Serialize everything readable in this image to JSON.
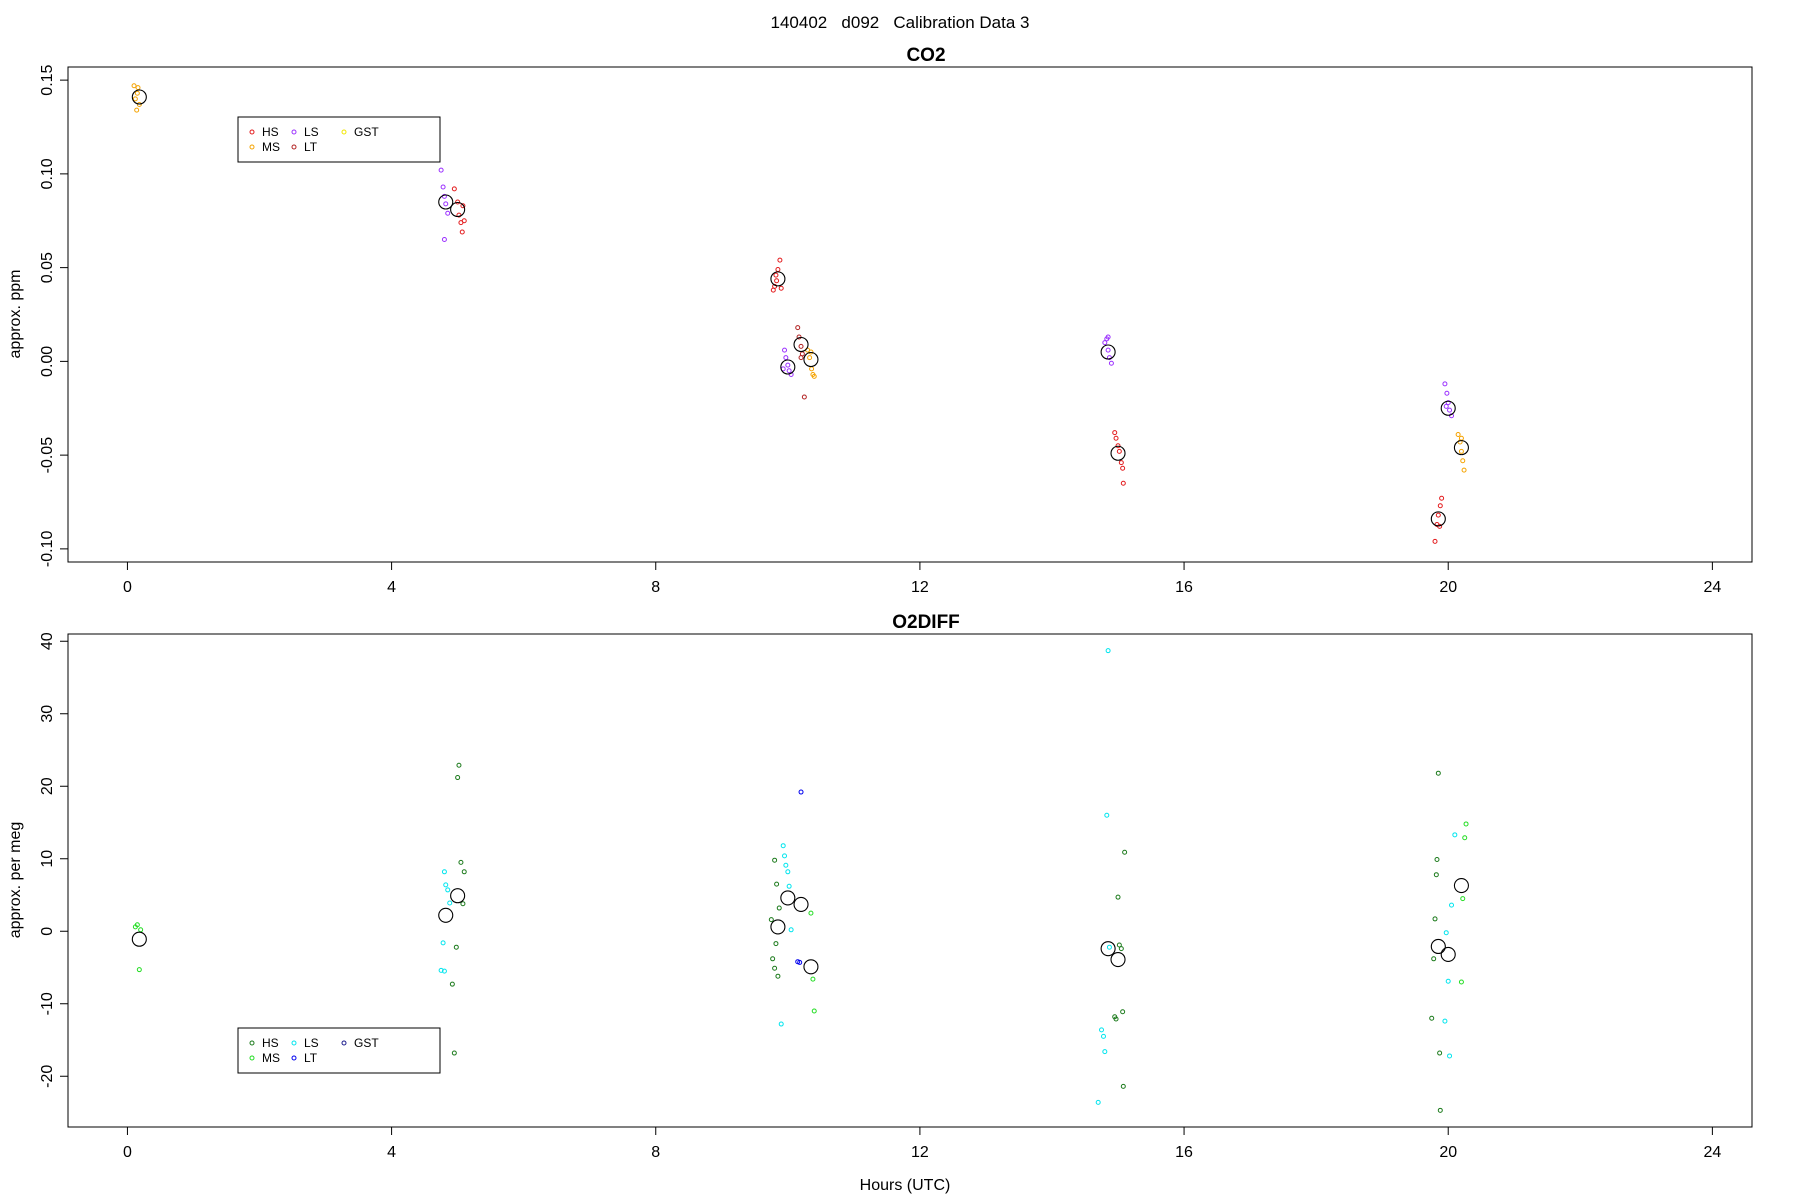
{
  "figure": {
    "title": "140402   d092   Calibration Data 3"
  },
  "panels": [
    {
      "title": "CO2",
      "ylabel": "approx. ppm",
      "xlabel": "",
      "xticks": [
        "0",
        "4",
        "8",
        "12",
        "16",
        "20",
        "24"
      ],
      "yticks": [
        "-0.10",
        "-0.05",
        "0.00",
        "0.05",
        "0.10",
        "0.15"
      ],
      "legend": [
        {
          "label": "HS",
          "color": "#e31a1c"
        },
        {
          "label": "MS",
          "color": "#f5a300"
        },
        {
          "label": "LS",
          "color": "#9b30ff"
        },
        {
          "label": "LT",
          "color": "#b22222"
        },
        {
          "label": "GST",
          "color": "#f2e600"
        }
      ]
    },
    {
      "title": "O2DIFF",
      "ylabel": "approx. per meg",
      "xlabel": "Hours (UTC)",
      "xticks": [
        "0",
        "4",
        "8",
        "12",
        "16",
        "20",
        "24"
      ],
      "yticks": [
        "-20",
        "-10",
        "0",
        "10",
        "20",
        "30",
        "40"
      ],
      "legend": [
        {
          "label": "HS",
          "color": "#1b7a1b"
        },
        {
          "label": "MS",
          "color": "#22dd22"
        },
        {
          "label": "LS",
          "color": "#00e5ee"
        },
        {
          "label": "LT",
          "color": "#0000ee"
        },
        {
          "label": "GST",
          "color": "#1a1a8c"
        }
      ]
    }
  ],
  "chart_data": [
    {
      "type": "scatter",
      "title": "CO2",
      "xlabel": "",
      "ylabel": "approx. ppm",
      "xlim": [
        -0.9,
        24.6
      ],
      "ylim": [
        -0.107,
        0.157
      ],
      "xticks": [
        0,
        4,
        8,
        12,
        16,
        20,
        24
      ],
      "yticks": [
        -0.1,
        -0.05,
        0.0,
        0.05,
        0.1,
        0.15
      ],
      "legend_position": "top-left",
      "series": [
        {
          "name": "HS",
          "color": "#e31a1c",
          "points": [
            [
              4.95,
              0.092
            ],
            [
              5.0,
              0.085
            ],
            [
              5.02,
              0.078
            ],
            [
              5.05,
              0.074
            ],
            [
              5.07,
              0.069
            ],
            [
              5.1,
              0.075
            ],
            [
              5.08,
              0.083
            ],
            [
              9.8,
              0.04
            ],
            [
              9.82,
              0.046
            ],
            [
              9.85,
              0.049
            ],
            [
              9.88,
              0.054
            ],
            [
              9.9,
              0.039
            ],
            [
              9.78,
              0.038
            ],
            [
              9.83,
              0.043
            ],
            [
              14.95,
              -0.038
            ],
            [
              14.97,
              -0.041
            ],
            [
              15.0,
              -0.045
            ],
            [
              15.02,
              -0.048
            ],
            [
              15.05,
              -0.054
            ],
            [
              15.07,
              -0.057
            ],
            [
              15.08,
              -0.065
            ],
            [
              19.8,
              -0.096
            ],
            [
              19.83,
              -0.087
            ],
            [
              19.85,
              -0.082
            ],
            [
              19.88,
              -0.077
            ],
            [
              19.9,
              -0.073
            ],
            [
              19.87,
              -0.088
            ]
          ]
        },
        {
          "name": "MS",
          "color": "#f5a300",
          "points": [
            [
              0.1,
              0.147
            ],
            [
              0.12,
              0.14
            ],
            [
              0.14,
              0.134
            ],
            [
              0.16,
              0.146
            ],
            [
              0.18,
              0.137
            ],
            [
              0.15,
              0.143
            ],
            [
              10.3,
              0.006
            ],
            [
              10.33,
              0.002
            ],
            [
              10.36,
              -0.004
            ],
            [
              10.38,
              -0.007
            ],
            [
              10.4,
              -0.008
            ],
            [
              10.35,
              0.005
            ],
            [
              20.15,
              -0.039
            ],
            [
              20.18,
              -0.043
            ],
            [
              20.2,
              -0.048
            ],
            [
              20.22,
              -0.053
            ],
            [
              20.24,
              -0.058
            ],
            [
              20.2,
              -0.041
            ]
          ]
        },
        {
          "name": "LS",
          "color": "#9b30ff",
          "points": [
            [
              4.75,
              0.102
            ],
            [
              4.78,
              0.093
            ],
            [
              4.8,
              0.088
            ],
            [
              4.82,
              0.084
            ],
            [
              4.85,
              0.079
            ],
            [
              4.8,
              0.065
            ],
            [
              9.95,
              0.006
            ],
            [
              9.97,
              0.002
            ],
            [
              10.0,
              -0.002
            ],
            [
              10.02,
              -0.005
            ],
            [
              10.05,
              -0.007
            ],
            [
              9.93,
              -0.004
            ],
            [
              14.8,
              0.01
            ],
            [
              14.83,
              0.012
            ],
            [
              14.85,
              0.006
            ],
            [
              14.87,
              0.002
            ],
            [
              14.9,
              -0.001
            ],
            [
              14.85,
              0.013
            ],
            [
              19.95,
              -0.012
            ],
            [
              19.98,
              -0.017
            ],
            [
              20.0,
              -0.022
            ],
            [
              20.02,
              -0.026
            ],
            [
              20.05,
              -0.029
            ],
            [
              19.97,
              -0.024
            ]
          ]
        },
        {
          "name": "LT",
          "color": "#b22222",
          "points": [
            [
              10.15,
              0.018
            ],
            [
              10.17,
              0.013
            ],
            [
              10.2,
              0.008
            ],
            [
              10.22,
              0.004
            ],
            [
              10.25,
              -0.019
            ],
            [
              10.2,
              0.002
            ]
          ]
        },
        {
          "name": "mean",
          "color": "#000000",
          "points": [
            [
              0.18,
              0.141
            ],
            [
              4.82,
              0.085
            ],
            [
              5.0,
              0.081
            ],
            [
              9.85,
              0.044
            ],
            [
              10.0,
              -0.003
            ],
            [
              10.2,
              0.009
            ],
            [
              10.35,
              0.001
            ],
            [
              14.85,
              0.005
            ],
            [
              15.0,
              -0.049
            ],
            [
              19.85,
              -0.084
            ],
            [
              20.0,
              -0.025
            ],
            [
              20.2,
              -0.046
            ]
          ]
        }
      ]
    },
    {
      "type": "scatter",
      "title": "O2DIFF",
      "xlabel": "Hours (UTC)",
      "ylabel": "approx. per meg",
      "xlim": [
        -0.9,
        24.6
      ],
      "ylim": [
        -27,
        41
      ],
      "xticks": [
        0,
        4,
        8,
        12,
        16,
        20,
        24
      ],
      "yticks": [
        -20,
        -10,
        0,
        10,
        20,
        30,
        40
      ],
      "legend_position": "bottom-left",
      "series": [
        {
          "name": "HS",
          "color": "#1b7a1b",
          "points": [
            [
              4.92,
              -7.3
            ],
            [
              4.95,
              -16.8
            ],
            [
              4.98,
              -2.2
            ],
            [
              5.0,
              21.2
            ],
            [
              5.02,
              22.9
            ],
            [
              5.05,
              9.5
            ],
            [
              5.08,
              3.8
            ],
            [
              5.1,
              8.2
            ],
            [
              9.75,
              1.6
            ],
            [
              9.77,
              -3.8
            ],
            [
              9.8,
              -5.1
            ],
            [
              9.82,
              -1.7
            ],
            [
              9.85,
              -6.2
            ],
            [
              9.8,
              9.8
            ],
            [
              9.83,
              6.5
            ],
            [
              9.87,
              3.2
            ],
            [
              14.95,
              -11.8
            ],
            [
              14.97,
              -12.1
            ],
            [
              15.0,
              4.7
            ],
            [
              15.02,
              -1.9
            ],
            [
              15.05,
              -2.4
            ],
            [
              15.07,
              -11.1
            ],
            [
              15.08,
              -21.4
            ],
            [
              15.1,
              10.9
            ],
            [
              19.75,
              -12.0
            ],
            [
              19.78,
              -3.8
            ],
            [
              19.8,
              1.7
            ],
            [
              19.82,
              7.8
            ],
            [
              19.83,
              9.9
            ],
            [
              19.85,
              21.8
            ],
            [
              19.87,
              -16.8
            ],
            [
              19.88,
              -24.7
            ]
          ]
        },
        {
          "name": "MS",
          "color": "#22dd22",
          "points": [
            [
              0.12,
              0.6
            ],
            [
              0.15,
              0.9
            ],
            [
              0.18,
              -5.3
            ],
            [
              0.2,
              0.2
            ],
            [
              10.35,
              2.5
            ],
            [
              10.38,
              -6.6
            ],
            [
              10.4,
              -11.0
            ],
            [
              20.2,
              -7.0
            ],
            [
              20.22,
              4.5
            ],
            [
              20.25,
              12.9
            ],
            [
              20.27,
              14.8
            ]
          ]
        },
        {
          "name": "LS",
          "color": "#00e5ee",
          "points": [
            [
              4.75,
              -5.4
            ],
            [
              4.78,
              -1.6
            ],
            [
              4.8,
              8.2
            ],
            [
              4.82,
              6.4
            ],
            [
              4.85,
              5.7
            ],
            [
              4.88,
              3.9
            ],
            [
              4.8,
              -5.5
            ],
            [
              9.9,
              -12.8
            ],
            [
              9.93,
              11.8
            ],
            [
              9.95,
              10.4
            ],
            [
              9.97,
              9.1
            ],
            [
              10.0,
              8.2
            ],
            [
              10.02,
              6.2
            ],
            [
              10.05,
              0.2
            ],
            [
              14.7,
              -23.6
            ],
            [
              14.75,
              -13.6
            ],
            [
              14.78,
              -14.5
            ],
            [
              14.8,
              -16.6
            ],
            [
              14.83,
              16.0
            ],
            [
              14.85,
              38.7
            ],
            [
              14.87,
              -2.2
            ],
            [
              19.95,
              -12.4
            ],
            [
              19.97,
              -0.2
            ],
            [
              20.0,
              -6.9
            ],
            [
              20.02,
              -17.2
            ],
            [
              20.05,
              3.6
            ],
            [
              20.1,
              13.3
            ]
          ]
        },
        {
          "name": "LT",
          "color": "#0000ee",
          "points": [
            [
              10.15,
              -4.2
            ],
            [
              10.18,
              -4.3
            ],
            [
              10.2,
              19.2
            ]
          ]
        },
        {
          "name": "mean",
          "color": "#000000",
          "points": [
            [
              0.18,
              -1.1
            ],
            [
              4.82,
              2.2
            ],
            [
              5.0,
              4.9
            ],
            [
              9.85,
              0.6
            ],
            [
              10.0,
              4.6
            ],
            [
              10.2,
              3.7
            ],
            [
              10.35,
              -4.9
            ],
            [
              14.85,
              -2.4
            ],
            [
              15.0,
              -3.9
            ],
            [
              19.85,
              -2.1
            ],
            [
              20.0,
              -3.2
            ],
            [
              20.2,
              6.3
            ]
          ]
        }
      ]
    }
  ]
}
